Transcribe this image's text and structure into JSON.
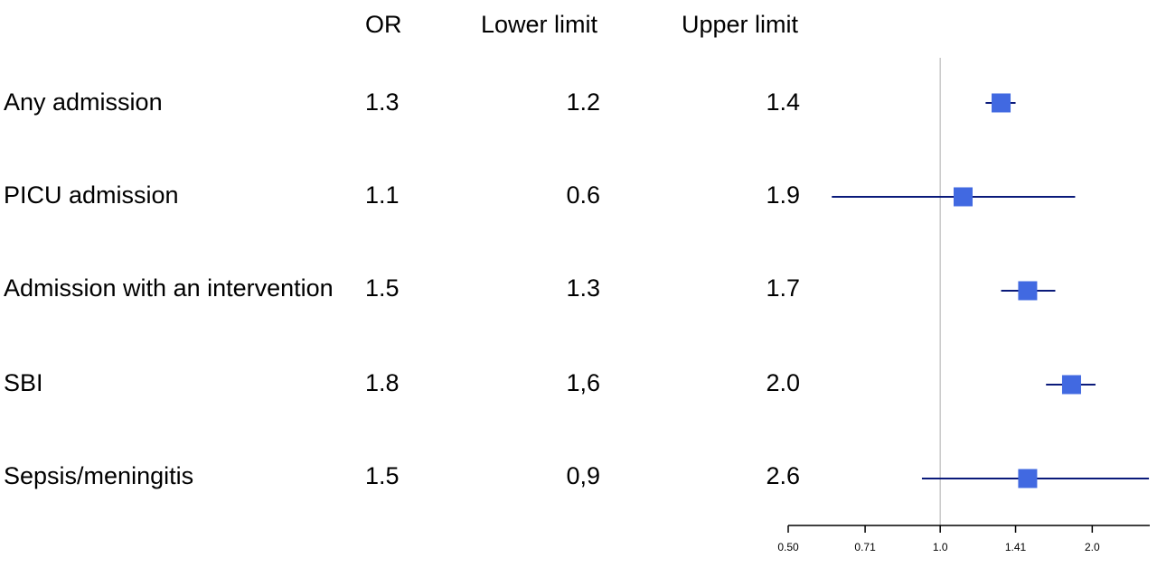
{
  "table": {
    "headers": {
      "or": "OR",
      "lower": "Lower limit",
      "upper": "Upper limit"
    },
    "rows": [
      {
        "label": "Any admission",
        "or": "1.3",
        "lower": "1.2",
        "upper": "1.4"
      },
      {
        "label": "PICU admission",
        "or": "1.1",
        "lower": "0.6",
        "upper": "1.9"
      },
      {
        "label": "Admission with an intervention",
        "or": "1.5",
        "lower": "1.3",
        "upper": "1.7"
      },
      {
        "label": "SBI",
        "or": "1.8",
        "lower": "1,6",
        "upper": "2.0"
      },
      {
        "label": "Sepsis/meningitis",
        "or": "1.5",
        "lower": "0,9",
        "upper": "2.6"
      }
    ]
  },
  "chart_data": {
    "type": "scatter",
    "subtype": "forest",
    "title": "",
    "xlabel": "",
    "ylabel": "",
    "x_scale": "log",
    "xlim": [
      0.5,
      2.6
    ],
    "reference_line": 1.0,
    "ticks": [
      {
        "value": 0.5,
        "label": "0.50"
      },
      {
        "value": 0.71,
        "label": "0.71"
      },
      {
        "value": 1.0,
        "label": "1.0"
      },
      {
        "value": 1.41,
        "label": "1.41"
      },
      {
        "value": 2.0,
        "label": "2.0"
      }
    ],
    "categories": [
      "Any admission",
      "PICU admission",
      "Admission with an intervention",
      "SBI",
      "Sepsis/meningitis"
    ],
    "series": [
      {
        "points": [
          {
            "estimate": 1.32,
            "lower": 1.23,
            "upper": 1.41
          },
          {
            "estimate": 1.11,
            "lower": 0.61,
            "upper": 1.85
          },
          {
            "estimate": 1.49,
            "lower": 1.32,
            "upper": 1.69
          },
          {
            "estimate": 1.82,
            "lower": 1.62,
            "upper": 2.03
          },
          {
            "estimate": 1.49,
            "lower": 0.92,
            "upper": 2.59
          }
        ]
      }
    ],
    "colors": {
      "marker": "#4169e1",
      "ci_line": "#0a1a7a",
      "axis": "#000000",
      "reference": "#c8c8c8"
    },
    "grid": false
  }
}
